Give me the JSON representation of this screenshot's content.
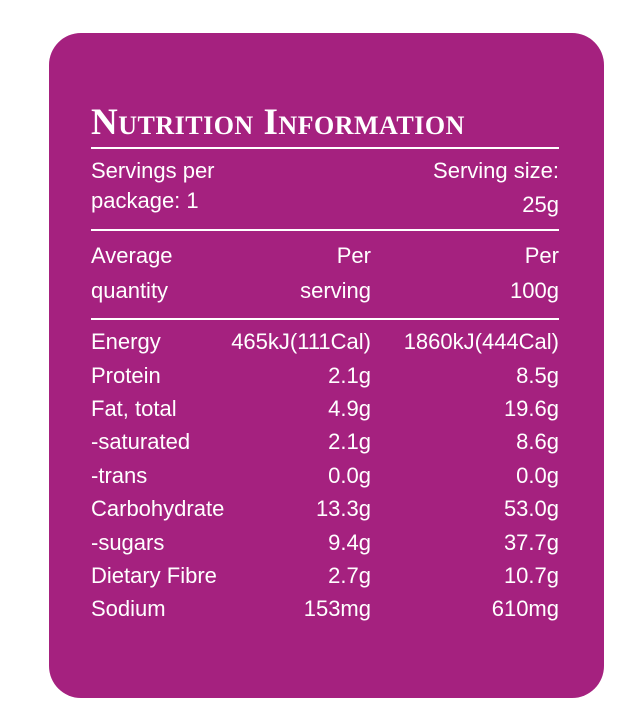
{
  "title": "Nutrition Information",
  "servings": {
    "per_package_line1": "Servings per",
    "per_package_line2": "package: 1",
    "size_line1": "Serving size:",
    "size_line2": "25g"
  },
  "columns": {
    "quantity_line1": "Average",
    "quantity_line2": "quantity",
    "per_serving_line1": "Per",
    "per_serving_line2": "serving",
    "per_100_line1": "Per",
    "per_100_line2": "100g"
  },
  "rows": [
    {
      "name": "Energy",
      "per_serving": "465kJ(111Cal)",
      "per_100g": "1860kJ(444Cal)"
    },
    {
      "name": "Protein",
      "per_serving": "2.1g",
      "per_100g": "8.5g"
    },
    {
      "name": "Fat, total",
      "per_serving": "4.9g",
      "per_100g": "19.6g"
    },
    {
      "name": "-saturated",
      "per_serving": "2.1g",
      "per_100g": "8.6g"
    },
    {
      "name": "-trans",
      "per_serving": "0.0g",
      "per_100g": "0.0g"
    },
    {
      "name": "Carbohydrate",
      "per_serving": "13.3g",
      "per_100g": "53.0g"
    },
    {
      "name": "-sugars",
      "per_serving": "9.4g",
      "per_100g": "37.7g"
    },
    {
      "name": "Dietary Fibre",
      "per_serving": "2.7g",
      "per_100g": "10.7g"
    },
    {
      "name": "Sodium",
      "per_serving": "153mg",
      "per_100g": "610mg"
    }
  ],
  "colors": {
    "panel": "#a5217f",
    "text": "#ffffff"
  }
}
